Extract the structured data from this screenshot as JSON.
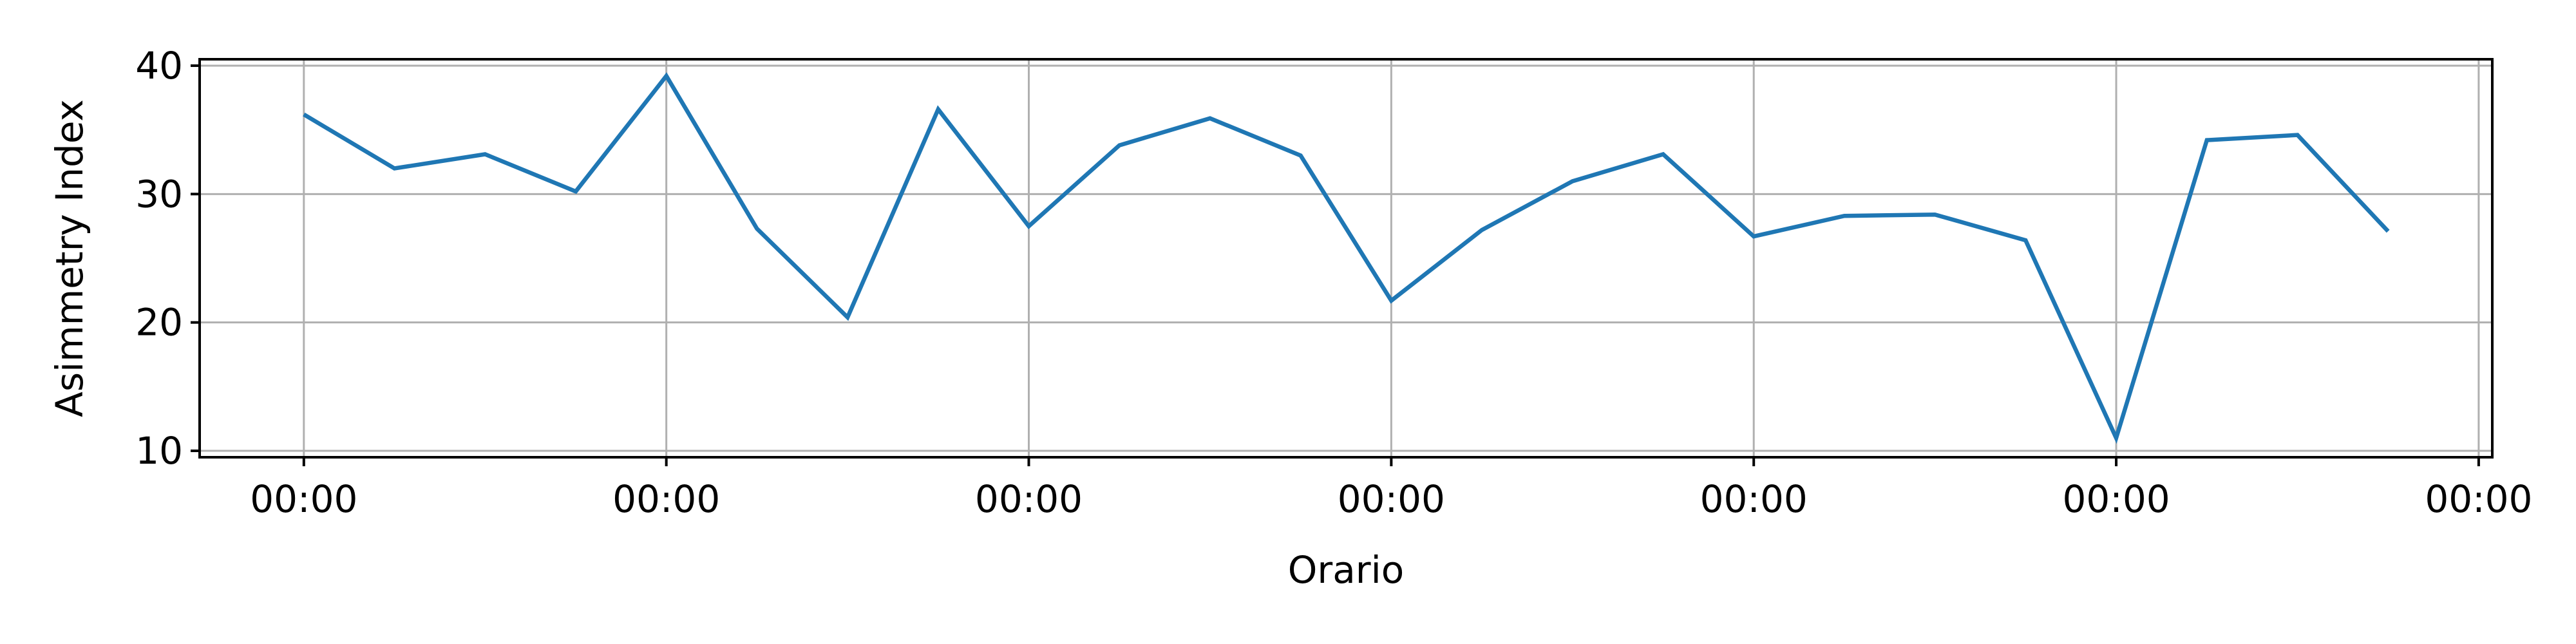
{
  "chart_data": {
    "type": "line",
    "title": "",
    "xlabel": "Orario",
    "ylabel": "Asimmetry Index",
    "x_tick_labels": [
      "00:00",
      "00:00",
      "00:00",
      "00:00",
      "00:00",
      "00:00",
      "00:00"
    ],
    "x_tick_positions": [
      0,
      4,
      8,
      12,
      16,
      20,
      24
    ],
    "x": [
      0,
      1,
      2,
      3,
      4,
      5,
      6,
      7,
      8,
      9,
      10,
      11,
      12,
      13,
      14,
      15,
      16,
      17,
      18,
      19,
      20,
      21,
      22,
      23
    ],
    "xlim": [
      -1.15,
      24.15
    ],
    "ylim": [
      9.5,
      40.5
    ],
    "y_ticks": [
      10,
      20,
      30,
      40
    ],
    "series": [
      {
        "values": [
          36.2,
          32.0,
          33.1,
          30.2,
          39.2,
          27.3,
          20.4,
          36.6,
          27.5,
          33.8,
          35.9,
          33.0,
          21.7,
          27.2,
          31.0,
          33.1,
          26.7,
          28.3,
          28.4,
          26.4,
          11.0,
          34.2,
          34.6,
          27.1
        ],
        "color": "#1f77b4"
      }
    ],
    "grid": true,
    "legend": "none"
  }
}
